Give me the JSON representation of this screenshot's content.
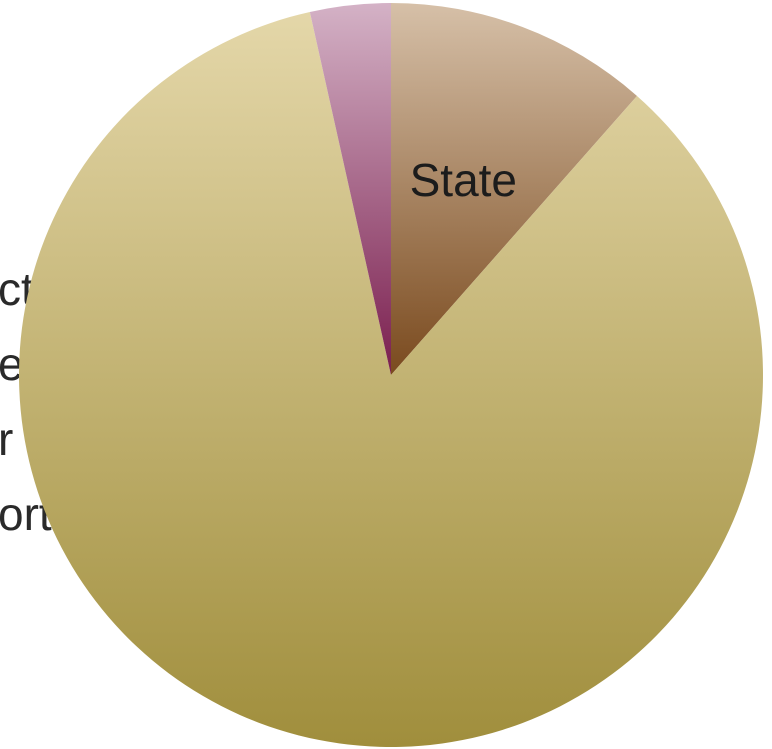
{
  "chart_data": {
    "type": "pie",
    "title": "",
    "slices": [
      {
        "label": "State",
        "value": 11.5,
        "color_top": "#d6c0a8",
        "color_bottom": "#7a4a1e"
      },
      {
        "label": "",
        "value": 85.0,
        "color_top": "#e4d7a9",
        "color_bottom": "#a08e3c"
      },
      {
        "label": "",
        "value": 3.5,
        "color_top": "#d4b2c6",
        "color_bottom": "#7a1e4e"
      }
    ],
    "start_angle_deg": 0,
    "direction": "clockwise"
  },
  "hidden_text_fragments": [
    "ct",
    "e",
    "r",
    "ort,"
  ]
}
